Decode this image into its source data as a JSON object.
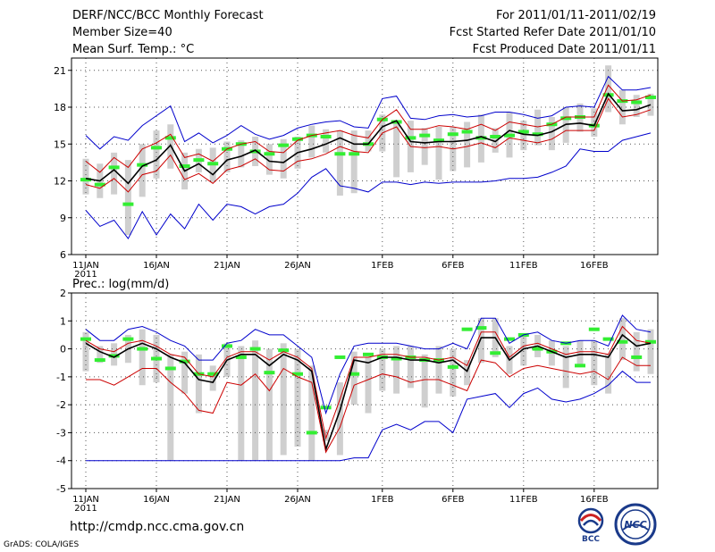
{
  "header": {
    "left_line1": "DERF/NCC/BCC Monthly Forecast",
    "left_line2": "Member Size=40",
    "left_line3": "Mean Surf. Temp.: °C",
    "right_line1": "For 2011/01/11-2011/02/19",
    "right_line2": "Fcst Started Refer Date 2011/01/10",
    "right_line3": "Fcst Produced Date 2011/01/11"
  },
  "footer": {
    "url": "http://cmdp.ncc.cma.gov.cn",
    "credit": "GrADS: COLA/IGES",
    "logo_bcc": "BCC",
    "logo_ncc": "NCC"
  },
  "chart_data": [
    {
      "type": "line",
      "title": "Mean Surf. Temp.: °C",
      "ylim": [
        6,
        22
      ],
      "yticks": [
        "6",
        "9",
        "12",
        "15",
        "18",
        "21"
      ],
      "xticks": [
        {
          "day": 0,
          "label": "11JAN"
        },
        {
          "day": 5,
          "label": "16JAN"
        },
        {
          "day": 10,
          "label": "21JAN"
        },
        {
          "day": 15,
          "label": "26JAN"
        },
        {
          "day": 21,
          "label": "1FEB"
        },
        {
          "day": 26,
          "label": "6FEB"
        },
        {
          "day": 31,
          "label": "11FEB"
        },
        {
          "day": 36,
          "label": "16FEB"
        }
      ],
      "year_label": "2011",
      "grid": true,
      "series": [
        {
          "name": "max",
          "color": "#0000cc",
          "values": [
            15.7,
            14.6,
            15.6,
            15.3,
            16.5,
            17.3,
            18.1,
            15.2,
            15.9,
            15.1,
            15.7,
            16.5,
            15.8,
            15.4,
            15.7,
            16.3,
            16.6,
            16.8,
            16.9,
            16.4,
            16.3,
            18.7,
            18.9,
            17.1,
            17.0,
            17.3,
            17.4,
            17.2,
            17.3,
            17.6,
            17.6,
            17.4,
            17.1,
            17.3,
            18.0,
            18.1,
            18.0,
            20.5,
            19.4,
            19.4,
            19.6
          ]
        },
        {
          "name": "upper",
          "color": "#cc0000",
          "values": [
            13.6,
            12.7,
            13.9,
            13.1,
            14.6,
            15.1,
            15.8,
            13.9,
            14.2,
            13.6,
            14.6,
            15.0,
            15.2,
            14.4,
            14.3,
            15.3,
            15.7,
            15.9,
            16.1,
            15.7,
            15.5,
            17.0,
            17.8,
            16.2,
            16.2,
            16.5,
            16.4,
            16.2,
            16.6,
            16.1,
            16.8,
            16.6,
            16.4,
            16.6,
            17.2,
            17.2,
            17.2,
            19.8,
            18.5,
            18.6,
            19.0
          ]
        },
        {
          "name": "mean",
          "color": "#000000",
          "values": [
            12.2,
            12.0,
            12.9,
            11.8,
            13.2,
            13.7,
            14.9,
            12.8,
            13.4,
            12.5,
            13.7,
            14.0,
            14.5,
            13.6,
            13.5,
            14.3,
            14.6,
            15.0,
            15.5,
            15.0,
            15.0,
            16.4,
            16.9,
            15.2,
            15.1,
            15.2,
            15.2,
            15.3,
            15.6,
            15.2,
            16.1,
            15.8,
            15.7,
            16.0,
            16.6,
            16.7,
            16.5,
            19.1,
            17.7,
            17.8,
            18.2
          ]
        },
        {
          "name": "lower",
          "color": "#cc0000",
          "values": [
            11.7,
            11.4,
            12.2,
            11.1,
            12.5,
            12.8,
            14.1,
            12.1,
            12.6,
            11.8,
            12.9,
            13.2,
            13.8,
            12.9,
            12.8,
            13.6,
            13.8,
            14.2,
            14.8,
            14.4,
            14.3,
            15.9,
            16.4,
            14.8,
            14.7,
            14.8,
            14.6,
            14.8,
            15.1,
            14.7,
            15.5,
            15.3,
            15.1,
            15.4,
            16.1,
            16.1,
            16.1,
            18.7,
            17.2,
            17.4,
            17.8
          ]
        },
        {
          "name": "min",
          "color": "#0000cc",
          "values": [
            9.6,
            8.3,
            8.8,
            7.3,
            9.5,
            7.6,
            9.3,
            8.1,
            10.1,
            8.8,
            10.1,
            9.9,
            9.3,
            9.9,
            10.1,
            11.0,
            12.3,
            13.0,
            11.6,
            11.4,
            11.1,
            11.9,
            11.9,
            11.7,
            11.9,
            11.8,
            11.9,
            11.9,
            11.9,
            12.0,
            12.2,
            12.2,
            12.3,
            12.7,
            13.2,
            14.6,
            14.4,
            14.4,
            15.3,
            15.6,
            15.9
          ]
        }
      ],
      "ranges": [
        [
          10.9,
          13.8
        ],
        [
          10.6,
          13.4
        ],
        [
          10.9,
          14.3
        ],
        [
          7.6,
          13.7
        ],
        [
          10.7,
          15.0
        ],
        [
          12.2,
          16.1
        ],
        [
          13.0,
          16.6
        ],
        [
          11.3,
          14.3
        ],
        [
          12.7,
          14.6
        ],
        [
          11.9,
          14.7
        ],
        [
          12.7,
          15.2
        ],
        [
          13.1,
          15.3
        ],
        [
          13.2,
          15.6
        ],
        [
          12.5,
          15.0
        ],
        [
          12.2,
          15.4
        ],
        [
          13.0,
          15.6
        ],
        [
          13.9,
          16.5
        ],
        [
          14.3,
          16.2
        ],
        [
          10.8,
          16.1
        ],
        [
          11.0,
          16.1
        ],
        [
          14.4,
          16.1
        ],
        [
          14.4,
          17.4
        ],
        [
          12.3,
          16.9
        ],
        [
          12.7,
          16.9
        ],
        [
          13.3,
          16.3
        ],
        [
          12.1,
          16.4
        ],
        [
          12.8,
          16.4
        ],
        [
          13.1,
          16.8
        ],
        [
          13.5,
          17.4
        ],
        [
          14.3,
          16.3
        ],
        [
          13.9,
          17.6
        ],
        [
          14.5,
          16.9
        ],
        [
          14.9,
          17.8
        ],
        [
          14.5,
          17.2
        ],
        [
          15.1,
          18.0
        ],
        [
          16.0,
          18.3
        ],
        [
          15.6,
          17.9
        ],
        [
          17.6,
          21.4
        ],
        [
          16.6,
          19.4
        ],
        [
          17.2,
          19.0
        ],
        [
          17.3,
          19.1
        ]
      ],
      "markers": [
        12.1,
        11.7,
        13.1,
        10.1,
        13.3,
        14.7,
        15.5,
        13.2,
        13.7,
        13.4,
        14.6,
        15.0,
        14.4,
        14.2,
        14.9,
        15.4,
        15.7,
        15.6,
        14.2,
        14.2,
        15.0,
        17.0,
        16.8,
        15.5,
        15.7,
        15.3,
        15.8,
        16.0,
        15.5,
        15.6,
        15.7,
        16.0,
        15.8,
        16.6,
        17.1,
        17.2,
        16.5,
        19.0,
        18.5,
        18.4,
        18.8
      ]
    },
    {
      "type": "line",
      "title": "Prec.: log(mm/d)",
      "ylim": [
        -5,
        2
      ],
      "yticks": [
        "-5",
        "-4",
        "-3",
        "-2",
        "-1",
        "0",
        "1",
        "2"
      ],
      "xticks": [
        {
          "day": 0,
          "label": "11JAN"
        },
        {
          "day": 5,
          "label": "16JAN"
        },
        {
          "day": 10,
          "label": "21JAN"
        },
        {
          "day": 15,
          "label": "26JAN"
        },
        {
          "day": 21,
          "label": "1FEB"
        },
        {
          "day": 26,
          "label": "6FEB"
        },
        {
          "day": 31,
          "label": "11FEB"
        },
        {
          "day": 36,
          "label": "16FEB"
        }
      ],
      "year_label": "2011",
      "grid": true,
      "series": [
        {
          "name": "max",
          "color": "#0000cc",
          "values": [
            0.7,
            0.3,
            0.3,
            0.7,
            0.8,
            0.6,
            0.3,
            0.1,
            -0.4,
            -0.4,
            0.2,
            0.3,
            0.7,
            0.5,
            0.5,
            0.1,
            -0.3,
            -2.3,
            -0.9,
            0.1,
            0.2,
            0.2,
            0.2,
            0.1,
            0.0,
            0.0,
            0.2,
            0.0,
            1.1,
            1.1,
            0.2,
            0.5,
            0.6,
            0.3,
            0.2,
            0.3,
            0.3,
            0.1,
            1.2,
            0.7,
            0.6
          ]
        },
        {
          "name": "upper",
          "color": "#cc0000",
          "values": [
            0.3,
            0.0,
            -0.1,
            0.2,
            0.3,
            0.1,
            -0.2,
            -0.3,
            -0.9,
            -1.0,
            -0.3,
            -0.1,
            -0.1,
            -0.4,
            -0.1,
            -0.3,
            -0.7,
            -3.2,
            -1.8,
            -0.3,
            -0.3,
            -0.2,
            -0.2,
            -0.3,
            -0.3,
            -0.4,
            -0.3,
            -0.6,
            0.6,
            0.6,
            -0.3,
            0.1,
            0.2,
            0.0,
            -0.2,
            -0.1,
            -0.1,
            -0.2,
            0.8,
            0.3,
            0.2
          ]
        },
        {
          "name": "mean",
          "color": "#000000",
          "values": [
            0.2,
            -0.1,
            -0.3,
            0.0,
            0.2,
            0.0,
            -0.3,
            -0.5,
            -1.1,
            -1.2,
            -0.4,
            -0.2,
            -0.2,
            -0.6,
            -0.2,
            -0.4,
            -0.8,
            -3.6,
            -2.2,
            -0.4,
            -0.5,
            -0.3,
            -0.3,
            -0.4,
            -0.4,
            -0.5,
            -0.4,
            -0.8,
            0.4,
            0.4,
            -0.4,
            0.0,
            0.1,
            -0.1,
            -0.3,
            -0.2,
            -0.2,
            -0.3,
            0.5,
            0.1,
            0.2
          ]
        },
        {
          "name": "lower",
          "color": "#cc0000",
          "values": [
            -1.1,
            -1.1,
            -1.3,
            -1.0,
            -0.7,
            -0.7,
            -1.2,
            -1.6,
            -2.2,
            -2.3,
            -1.2,
            -1.3,
            -0.9,
            -1.5,
            -0.7,
            -1.0,
            -1.2,
            -3.7,
            -2.8,
            -1.3,
            -1.1,
            -0.9,
            -1.0,
            -1.2,
            -1.1,
            -1.1,
            -1.3,
            -1.5,
            -0.4,
            -0.5,
            -1.0,
            -0.7,
            -0.6,
            -0.7,
            -0.8,
            -0.9,
            -0.8,
            -1.1,
            -0.3,
            -0.6,
            -0.6
          ]
        },
        {
          "name": "min",
          "color": "#0000cc",
          "values": [
            -4.0,
            -4.0,
            -4.0,
            -4.0,
            -4.0,
            -4.0,
            -4.0,
            -4.0,
            -4.0,
            -4.0,
            -4.0,
            -4.0,
            -4.0,
            -4.0,
            -4.0,
            -4.0,
            -4.0,
            -4.0,
            -4.0,
            -3.9,
            -3.9,
            -2.9,
            -2.7,
            -2.9,
            -2.6,
            -2.6,
            -3.0,
            -1.8,
            -1.7,
            -1.6,
            -2.1,
            -1.6,
            -1.4,
            -1.8,
            -1.9,
            -1.8,
            -1.6,
            -1.3,
            -0.8,
            -1.2,
            -1.2
          ]
        }
      ],
      "ranges": [
        [
          -0.8,
          0.6
        ],
        [
          -0.5,
          0.1
        ],
        [
          -0.6,
          0.2
        ],
        [
          -0.5,
          0.5
        ],
        [
          -1.3,
          0.7
        ],
        [
          -1.2,
          0.5
        ],
        [
          -4.0,
          -0.2
        ],
        [
          -1.6,
          -0.1
        ],
        [
          -2.3,
          -0.2
        ],
        [
          -1.5,
          -0.6
        ],
        [
          -1.0,
          0.2
        ],
        [
          -4.0,
          0.1
        ],
        [
          -4.0,
          0.3
        ],
        [
          -4.0,
          0.0
        ],
        [
          -3.8,
          0.2
        ],
        [
          -3.5,
          0.0
        ],
        [
          -4.0,
          -0.6
        ],
        [
          -3.3,
          -2.9
        ],
        [
          -3.8,
          -1.2
        ],
        [
          -2.0,
          -0.1
        ],
        [
          -2.3,
          -0.3
        ],
        [
          -1.5,
          0.0
        ],
        [
          -1.6,
          0.1
        ],
        [
          -1.4,
          0.1
        ],
        [
          -2.1,
          -0.2
        ],
        [
          -1.6,
          0.1
        ],
        [
          -1.7,
          0.0
        ],
        [
          -1.3,
          -0.4
        ],
        [
          -0.5,
          1.1
        ],
        [
          -0.3,
          1.1
        ],
        [
          -0.9,
          0.1
        ],
        [
          -0.6,
          0.5
        ],
        [
          -0.3,
          0.5
        ],
        [
          -0.6,
          0.3
        ],
        [
          -1.4,
          0.1
        ],
        [
          -0.6,
          0.3
        ],
        [
          -1.3,
          0.3
        ],
        [
          -1.6,
          -0.2
        ],
        [
          -0.4,
          1.1
        ],
        [
          -0.8,
          0.6
        ],
        [
          -0.9,
          0.7
        ]
      ],
      "markers": [
        0.35,
        -0.4,
        -0.25,
        0.35,
        0.0,
        -0.35,
        -0.7,
        -0.45,
        -0.9,
        -0.9,
        0.1,
        -0.3,
        0.0,
        -0.85,
        -0.05,
        -0.9,
        -3.0,
        -2.1,
        -0.3,
        -0.9,
        -0.2,
        -0.3,
        -0.35,
        -0.3,
        -0.4,
        -0.4,
        -0.65,
        0.7,
        0.75,
        -0.15,
        0.35,
        0.5,
        0.0,
        -0.1,
        0.2,
        -0.6,
        0.7,
        0.35,
        0.25,
        -0.3,
        0.25
      ]
    }
  ]
}
